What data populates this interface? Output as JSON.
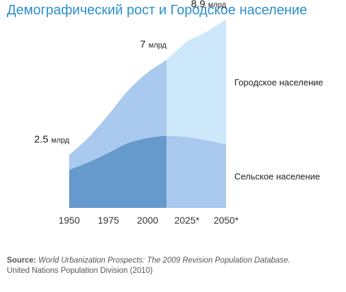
{
  "title": "Демографический рост и Городское население",
  "chart_data": {
    "type": "area",
    "stacked": true,
    "x": [
      1950,
      1975,
      2000,
      2025,
      2050
    ],
    "x_tick_labels": [
      "1950",
      "1975",
      "2000",
      "2025*",
      "2050*"
    ],
    "projection_from": 2012,
    "ylabel": "",
    "ylim": [
      0,
      9.5
    ],
    "series": [
      {
        "name": "Сельское население",
        "x": [
          1950,
          1962,
          1975,
          1987,
          2000,
          2012,
          2025,
          2037,
          2050
        ],
        "values": [
          1.8,
          2.15,
          2.6,
          3.05,
          3.3,
          3.4,
          3.35,
          3.2,
          3.0
        ],
        "color_past": "#6699cc",
        "color_projection": "#a9c9ee"
      },
      {
        "name": "Городское население",
        "x": [
          1950,
          1962,
          1975,
          1987,
          2000,
          2012,
          2025,
          2037,
          2050
        ],
        "values": [
          0.7,
          1.15,
          1.8,
          2.45,
          3.1,
          3.6,
          4.5,
          5.1,
          5.9
        ],
        "color_past": "#a9c9ee",
        "color_projection": "#cde8fb"
      }
    ],
    "totals": [
      {
        "x": 1950,
        "value": "2.5",
        "unit": "млрд"
      },
      {
        "x": 2012,
        "value": "7",
        "unit": "млрд"
      },
      {
        "x": 2050,
        "value": "8.9",
        "unit": "млрд"
      }
    ],
    "grid": false,
    "legend": "inline-right"
  },
  "source": {
    "key": "Source:",
    "title": "World Urbanization Prospects: The 2009 Revision Population Database.",
    "line2": "United Nations Population Division (2010)"
  }
}
